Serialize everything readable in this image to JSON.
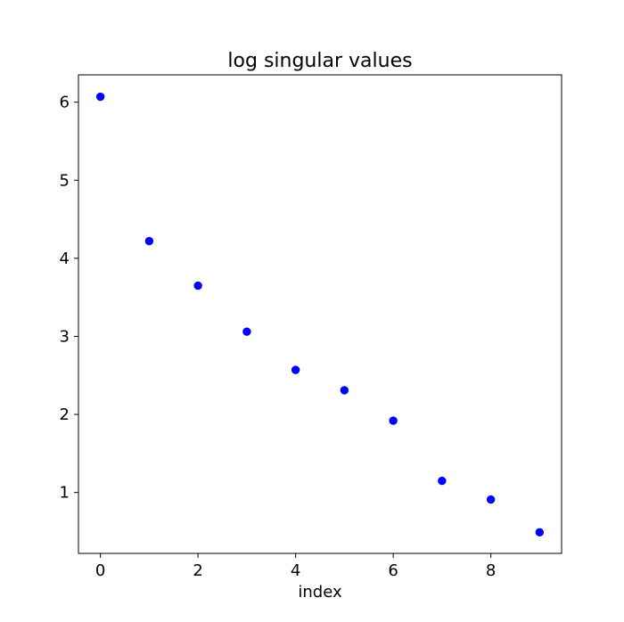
{
  "chart_data": {
    "type": "scatter",
    "title": "log singular values",
    "xlabel": "index",
    "ylabel": "",
    "xlim": [
      -0.45,
      9.45
    ],
    "ylim": [
      0.22,
      6.35
    ],
    "xticks": [
      0,
      2,
      4,
      6,
      8
    ],
    "yticks": [
      1,
      2,
      3,
      4,
      5,
      6
    ],
    "grid": false,
    "marker_color": "#0000ff",
    "series": [
      {
        "x": [
          0,
          1,
          2,
          3,
          4,
          5,
          6,
          7,
          8,
          9
        ],
        "y": [
          6.07,
          4.22,
          3.65,
          3.06,
          2.57,
          2.31,
          1.92,
          1.15,
          0.91,
          0.49
        ]
      }
    ]
  }
}
